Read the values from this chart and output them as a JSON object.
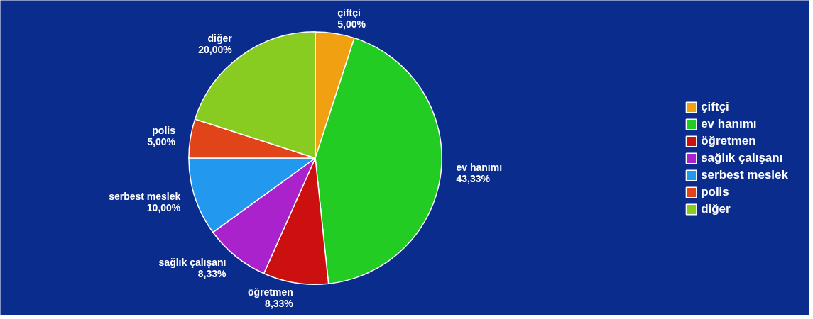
{
  "chart_data": {
    "type": "pie",
    "categories": [
      "çiftçi",
      "ev hanımı",
      "öğretmen",
      "sağlık çalışanı",
      "serbest meslek",
      "polis",
      "diğer"
    ],
    "values": [
      5.0,
      43.33,
      8.33,
      8.33,
      10.0,
      5.0,
      20.0
    ],
    "colors": [
      "#f0a010",
      "#22cc22",
      "#cc1010",
      "#aa22cc",
      "#2299ee",
      "#e04418",
      "#88cc22"
    ],
    "value_labels": [
      "5,00%",
      "43,33%",
      "8,33%",
      "8,33%",
      "10,00%",
      "5,00%",
      "20,00%"
    ],
    "legend": "right"
  }
}
